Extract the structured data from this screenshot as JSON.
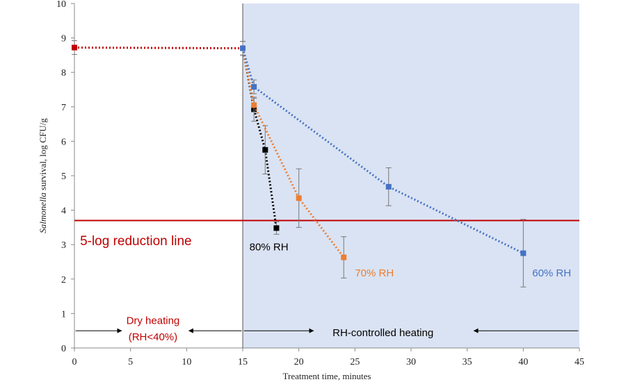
{
  "chart_data": {
    "type": "scatter",
    "xlabel": "Treatment time, minutes",
    "ylabel_italic": "Salmonella",
    "ylabel_rest": " survival, log CFU/g",
    "xlim": [
      0,
      45
    ],
    "ylim": [
      0,
      10
    ],
    "x_ticks": [
      "0",
      "5",
      "10",
      "15",
      "20",
      "25",
      "30",
      "35",
      "40",
      "45"
    ],
    "y_ticks": [
      "0",
      "1",
      "2",
      "3",
      "4",
      "5",
      "6",
      "7",
      "8",
      "9",
      "10"
    ],
    "grid": false,
    "shaded_region": {
      "x_start": 15,
      "x_end": 45,
      "color": "#dae3f3"
    },
    "divider_x": 15,
    "reference_line": {
      "y": 3.7,
      "label": "5-log reduction line",
      "color": "#c00000"
    },
    "series": [
      {
        "name": "Dry heating",
        "color": "#c00000",
        "x": [
          0,
          15
        ],
        "y": [
          8.72,
          8.7
        ],
        "err": [
          0.2,
          0.2
        ]
      },
      {
        "name": "80% RH",
        "color": "#000000",
        "x": [
          15,
          16,
          17,
          18
        ],
        "y": [
          8.7,
          6.93,
          5.75,
          3.48
        ],
        "err": [
          0.2,
          0.35,
          0.7,
          0.18
        ]
      },
      {
        "name": "70% RH",
        "color": "#ed7d31",
        "x": [
          15,
          16,
          20,
          24
        ],
        "y": [
          8.7,
          7.05,
          4.35,
          2.63
        ],
        "err": [
          0.2,
          0.2,
          0.85,
          0.6
        ]
      },
      {
        "name": "60% RH",
        "color": "#4472c4",
        "x": [
          15,
          16,
          28,
          40
        ],
        "y": [
          8.7,
          7.58,
          4.68,
          2.75
        ],
        "err": [
          0.2,
          0.2,
          0.55,
          0.98
        ]
      }
    ],
    "series_labels": [
      {
        "text": "80% RH",
        "color": "#000000",
        "x": 15.6,
        "y": 2.95
      },
      {
        "text": "70% RH",
        "color": "#ed7d31",
        "x": 25,
        "y": 2.2
      },
      {
        "text": "60% RH",
        "color": "#4472c4",
        "x": 40.8,
        "y": 2.2
      }
    ],
    "phase_annotations": {
      "dry_line1": "Dry heating",
      "dry_line2": "(RH<40%)",
      "rh": "RH-controlled heating"
    }
  }
}
